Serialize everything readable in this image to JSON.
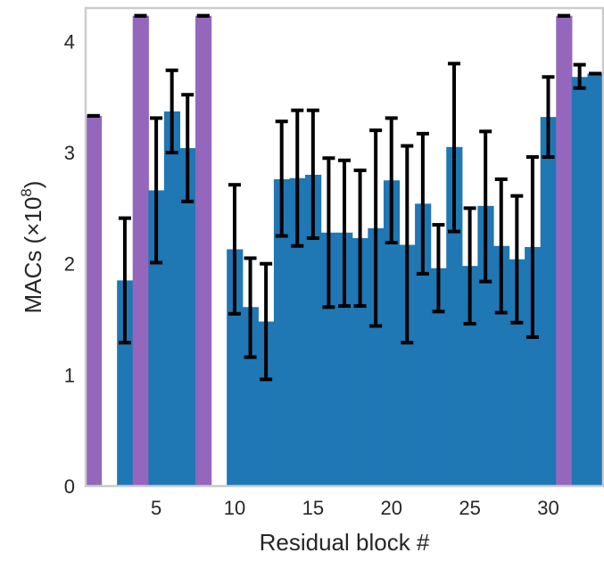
{
  "chart_data": {
    "type": "bar",
    "xlabel": "Residual block #",
    "ylabel_main": "MACs (×10",
    "ylabel_exp": "8",
    "ylabel_close": ")",
    "xlim": [
      0.5,
      33.5
    ],
    "ylim": [
      0,
      4.3
    ],
    "x_ticks": [
      5,
      10,
      15,
      20,
      25,
      30
    ],
    "y_ticks": [
      0,
      1,
      2,
      3,
      4
    ],
    "grid": false,
    "colors": {
      "blue": "#1f77b4",
      "purple": "#9467bd",
      "error": "#000000",
      "frame": "#cccccc"
    },
    "bars": [
      {
        "x": 1,
        "value": 3.33,
        "err": [
          3.33,
          3.33
        ],
        "color": "purple"
      },
      {
        "x": 3,
        "value": 1.85,
        "err": [
          1.29,
          2.41
        ],
        "color": "blue"
      },
      {
        "x": 4,
        "value": 4.23,
        "err": [
          4.23,
          4.23
        ],
        "color": "purple"
      },
      {
        "x": 5,
        "value": 2.66,
        "err": [
          2.01,
          3.31
        ],
        "color": "blue"
      },
      {
        "x": 6,
        "value": 3.37,
        "err": [
          3.0,
          3.74
        ],
        "color": "blue"
      },
      {
        "x": 7,
        "value": 3.04,
        "err": [
          2.56,
          3.52
        ],
        "color": "blue"
      },
      {
        "x": 8,
        "value": 4.23,
        "err": [
          4.23,
          4.23
        ],
        "color": "purple"
      },
      {
        "x": 10,
        "value": 2.13,
        "err": [
          1.55,
          2.71
        ],
        "color": "blue"
      },
      {
        "x": 11,
        "value": 1.61,
        "err": [
          1.16,
          2.05
        ],
        "color": "blue"
      },
      {
        "x": 12,
        "value": 1.48,
        "err": [
          0.96,
          2.0
        ],
        "color": "blue"
      },
      {
        "x": 13,
        "value": 2.76,
        "err": [
          2.25,
          3.28
        ],
        "color": "blue"
      },
      {
        "x": 14,
        "value": 2.77,
        "err": [
          2.16,
          3.38
        ],
        "color": "blue"
      },
      {
        "x": 15,
        "value": 2.8,
        "err": [
          2.23,
          3.38
        ],
        "color": "blue"
      },
      {
        "x": 16,
        "value": 2.28,
        "err": [
          1.61,
          2.95
        ],
        "color": "blue"
      },
      {
        "x": 17,
        "value": 2.28,
        "err": [
          1.62,
          2.93
        ],
        "color": "blue"
      },
      {
        "x": 18,
        "value": 2.23,
        "err": [
          1.62,
          2.84
        ],
        "color": "blue"
      },
      {
        "x": 19,
        "value": 2.32,
        "err": [
          1.44,
          3.2
        ],
        "color": "blue"
      },
      {
        "x": 20,
        "value": 2.75,
        "err": [
          2.19,
          3.31
        ],
        "color": "blue"
      },
      {
        "x": 21,
        "value": 2.17,
        "err": [
          1.29,
          3.06
        ],
        "color": "blue"
      },
      {
        "x": 22,
        "value": 2.54,
        "err": [
          1.91,
          3.17
        ],
        "color": "blue"
      },
      {
        "x": 23,
        "value": 1.96,
        "err": [
          1.57,
          2.35
        ],
        "color": "blue"
      },
      {
        "x": 24,
        "value": 3.05,
        "err": [
          2.29,
          3.8
        ],
        "color": "blue"
      },
      {
        "x": 25,
        "value": 1.98,
        "err": [
          1.46,
          2.5
        ],
        "color": "blue"
      },
      {
        "x": 26,
        "value": 2.52,
        "err": [
          1.84,
          3.19
        ],
        "color": "blue"
      },
      {
        "x": 27,
        "value": 2.16,
        "err": [
          1.56,
          2.76
        ],
        "color": "blue"
      },
      {
        "x": 28,
        "value": 2.04,
        "err": [
          1.47,
          2.61
        ],
        "color": "blue"
      },
      {
        "x": 29,
        "value": 2.15,
        "err": [
          1.34,
          2.96
        ],
        "color": "blue"
      },
      {
        "x": 30,
        "value": 3.32,
        "err": [
          2.96,
          3.68
        ],
        "color": "blue"
      },
      {
        "x": 31,
        "value": 4.23,
        "err": [
          4.23,
          4.23
        ],
        "color": "purple"
      },
      {
        "x": 32,
        "value": 3.68,
        "err": [
          3.58,
          3.79
        ],
        "color": "blue"
      },
      {
        "x": 33,
        "value": 3.71,
        "err": [
          3.71,
          3.71
        ],
        "color": "blue"
      }
    ]
  }
}
